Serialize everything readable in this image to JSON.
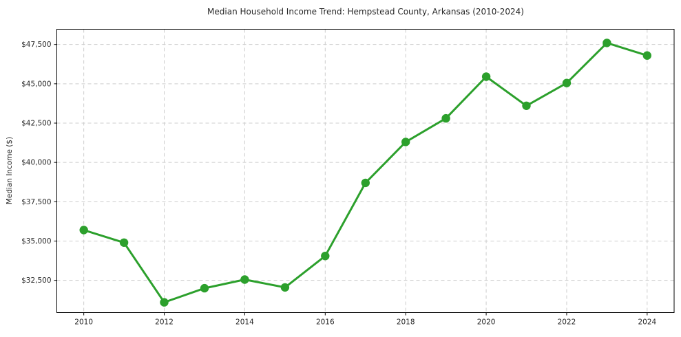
{
  "chart_data": {
    "type": "line",
    "title": "Median Household Income Trend: Hempstead County, Arkansas (2010-2024)",
    "xlabel": "",
    "ylabel": "Median Income ($)",
    "x": [
      2010,
      2011,
      2012,
      2013,
      2014,
      2015,
      2016,
      2017,
      2018,
      2019,
      2020,
      2021,
      2022,
      2023,
      2024
    ],
    "series": [
      {
        "name": "Median Household Income",
        "values": [
          35700,
          34900,
          31100,
          32000,
          32550,
          32050,
          34050,
          38700,
          41300,
          42800,
          45450,
          43600,
          45050,
          47600,
          46800
        ]
      }
    ],
    "x_ticks": [
      2010,
      2012,
      2014,
      2016,
      2018,
      2020,
      2022,
      2024
    ],
    "x_tick_labels": [
      "2010",
      "2012",
      "2014",
      "2016",
      "2018",
      "2020",
      "2022",
      "2024"
    ],
    "y_ticks": [
      32500,
      35000,
      37500,
      40000,
      42500,
      45000,
      47500
    ],
    "y_tick_labels": [
      "$32,500",
      "$35,000",
      "$37,500",
      "$40,000",
      "$42,500",
      "$45,000",
      "$47,500"
    ],
    "xlim": [
      2009.33,
      2024.67
    ],
    "ylim": [
      30450,
      48470
    ],
    "grid": true,
    "grid_style": "dashed",
    "legend_position": "none",
    "marker": "circle",
    "colors": {
      "line": "#2ca02c",
      "marker": "#2ca02c",
      "grid": "#cccccc",
      "spine": "#000000",
      "text": "#262626",
      "background": "#ffffff"
    }
  }
}
